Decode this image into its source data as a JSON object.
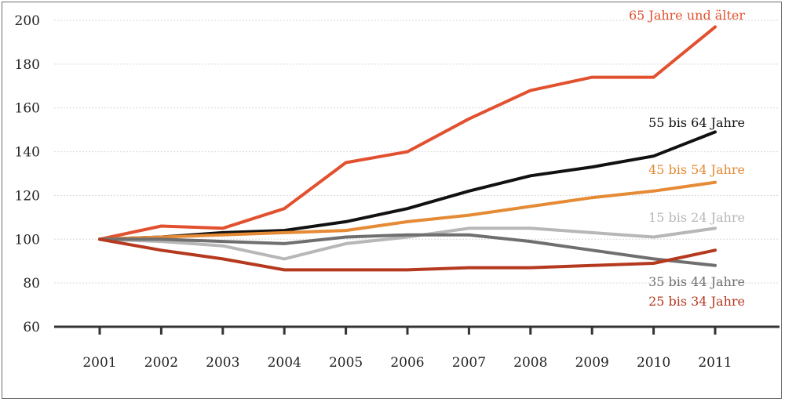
{
  "chart_data": {
    "type": "line",
    "x": [
      2001,
      2002,
      2003,
      2004,
      2005,
      2006,
      2007,
      2008,
      2009,
      2010,
      2011
    ],
    "x_tick_labels": [
      "2001",
      "2002",
      "2003",
      "2004",
      "2005",
      "2006",
      "2007",
      "2008",
      "2009",
      "2010",
      "2011"
    ],
    "ylim": [
      60,
      200
    ],
    "y_ticks": [
      60,
      80,
      100,
      120,
      140,
      160,
      180,
      200
    ],
    "y_tick_labels": [
      "60",
      "80",
      "100",
      "120",
      "140",
      "160",
      "180",
      "200"
    ],
    "grid": true,
    "legend": "inline labels at right end of lines",
    "series": [
      {
        "name": "65 Jahre und älter",
        "color": "#e2512f",
        "values": [
          100,
          106,
          105,
          114,
          135,
          140,
          155,
          168,
          174,
          174,
          197
        ]
      },
      {
        "name": "55 bis 64 Jahre",
        "color": "#111111",
        "values": [
          100,
          101,
          103,
          104,
          108,
          114,
          122,
          129,
          133,
          138,
          149
        ]
      },
      {
        "name": "45 bis 54 Jahre",
        "color": "#e58a35",
        "values": [
          100,
          101,
          102,
          103,
          104,
          108,
          111,
          115,
          119,
          122,
          126
        ]
      },
      {
        "name": "15 bis 24 Jahre",
        "color": "#b7b7b7",
        "values": [
          100,
          99,
          97,
          91,
          98,
          101,
          105,
          105,
          103,
          101,
          105
        ]
      },
      {
        "name": "35 bis 44 Jahre",
        "color": "#6f6f6f",
        "values": [
          100,
          100,
          99,
          98,
          101,
          102,
          102,
          99,
          95,
          91,
          88
        ]
      },
      {
        "name": "25 bis 34 Jahre",
        "color": "#b5391f",
        "values": [
          100,
          95,
          91,
          86,
          86,
          86,
          87,
          87,
          88,
          89,
          95
        ]
      }
    ]
  }
}
